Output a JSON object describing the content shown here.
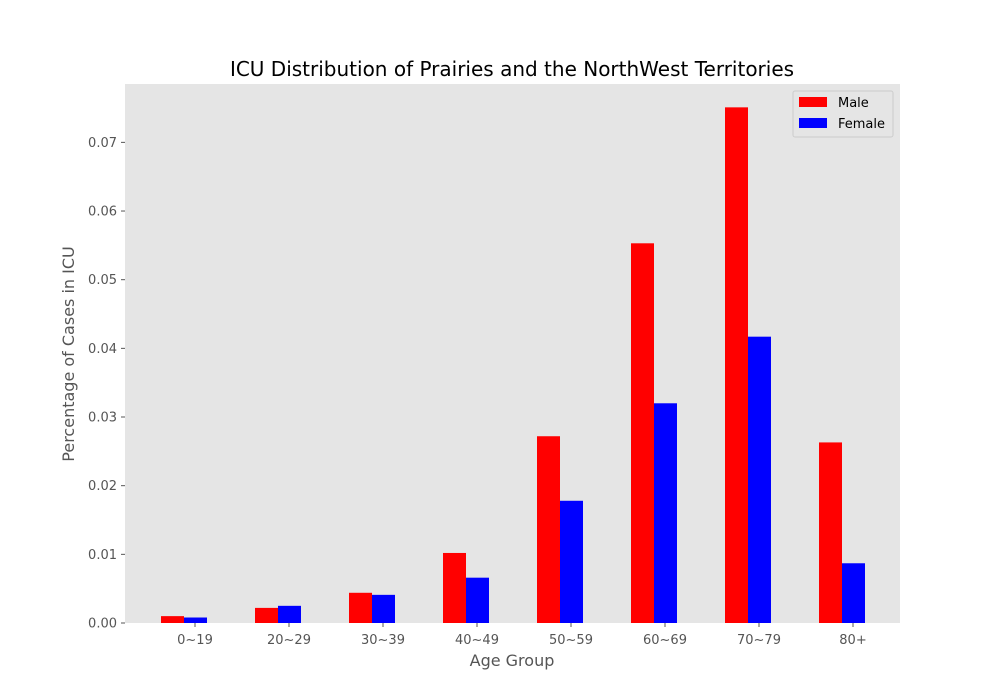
{
  "chart_data": {
    "type": "bar",
    "title": "ICU Distribution of Prairies and the NorthWest Territories",
    "xlabel": "Age Group",
    "ylabel": "Percentage of Cases in ICU",
    "categories": [
      "0~19",
      "20~29",
      "30~39",
      "40~49",
      "50~59",
      "60~69",
      "70~79",
      "80+"
    ],
    "series": [
      {
        "name": "Male",
        "color": "#ff0000",
        "values": [
          0.001,
          0.0022,
          0.0044,
          0.0102,
          0.0272,
          0.0553,
          0.0751,
          0.0263
        ]
      },
      {
        "name": "Female",
        "color": "#0000ff",
        "values": [
          0.0008,
          0.0025,
          0.0041,
          0.0066,
          0.0178,
          0.032,
          0.0417,
          0.0087
        ]
      }
    ],
    "ylim": [
      0,
      0.0785
    ],
    "yticks": [
      "0.00",
      "0.01",
      "0.02",
      "0.03",
      "0.04",
      "0.05",
      "0.06",
      "0.07"
    ],
    "grid": false,
    "legend_position": "top-right",
    "background": "#e5e5e5"
  }
}
